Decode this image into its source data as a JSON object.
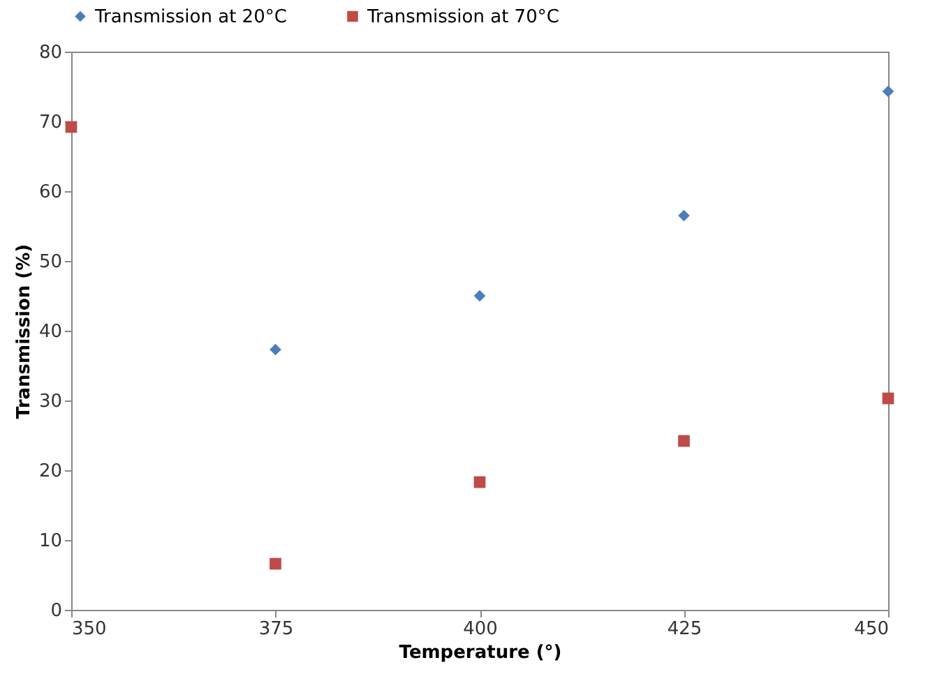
{
  "chart_data": {
    "type": "scatter",
    "xlabel": "Temperature (°)",
    "ylabel": "Transmission (%)",
    "xlim": [
      350,
      450
    ],
    "xticks": [
      350,
      375,
      400,
      425,
      450
    ],
    "ylim": [
      0,
      80
    ],
    "yticks": [
      0,
      10,
      20,
      30,
      40,
      50,
      60,
      70,
      80
    ],
    "grid": false,
    "legend": "top",
    "series": [
      {
        "name": "Transmission at 20°C",
        "color": "#4a7ebb",
        "marker": "diamond",
        "x": [
          375,
          400,
          425,
          450
        ],
        "values": [
          37.3,
          45,
          56.5,
          74.3
        ]
      },
      {
        "name": "Transmission at 70°C",
        "color": "#be4b48",
        "marker": "square",
        "x": [
          350,
          375,
          400,
          425,
          450
        ],
        "values": [
          69.2,
          6.6,
          18.3,
          24.2,
          30.3
        ]
      }
    ]
  }
}
